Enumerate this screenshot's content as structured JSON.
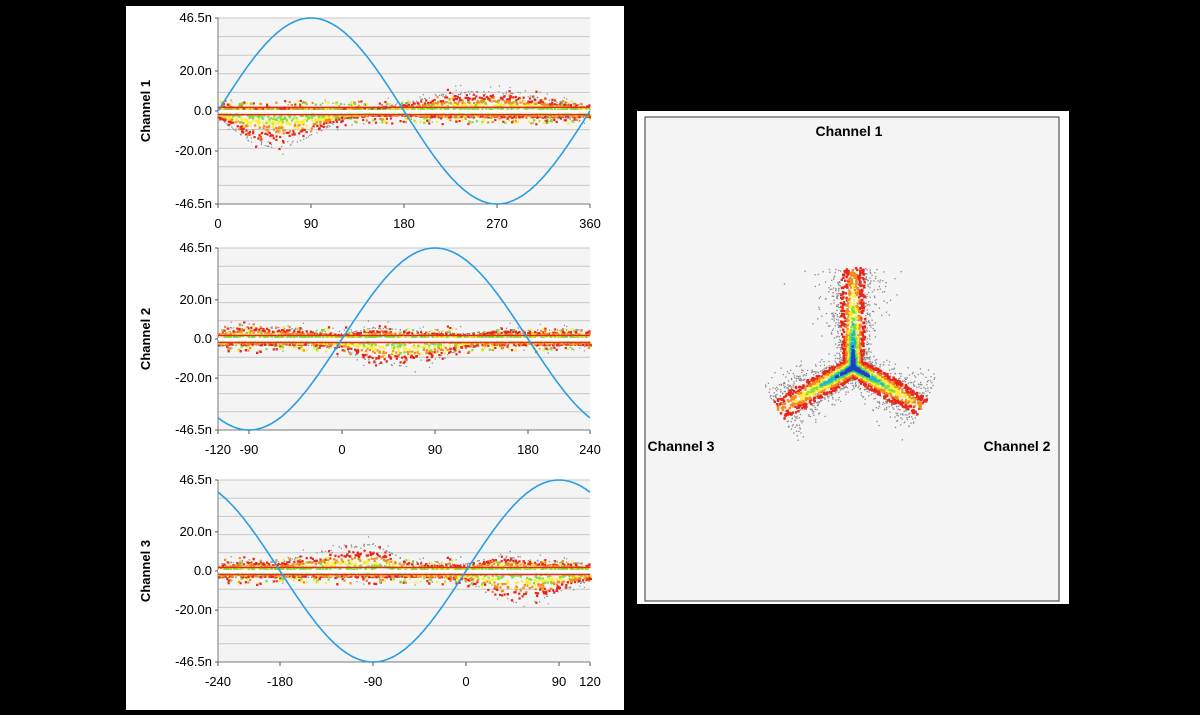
{
  "chart_data": [
    {
      "type": "scatter",
      "ylabel": "Channel 1",
      "ylim": [
        -46.5,
        46.5
      ],
      "ytick_labels": [
        "46.5n",
        "20.0n",
        "0.0",
        "-20.0n",
        "-46.5n"
      ],
      "ytick_values": [
        46.5,
        20,
        0,
        -20,
        -46.5
      ],
      "xlim": [
        0,
        360
      ],
      "xtick_values": [
        0,
        90,
        180,
        270,
        360
      ],
      "xtick_labels": [
        "0",
        "90",
        "180",
        "270",
        "360"
      ],
      "reference_sine": {
        "amplitude": 46.5,
        "phase_deg": 0,
        "color": "#2a9ee0"
      },
      "density_profile": {
        "x": [
          0,
          30,
          60,
          90,
          120,
          150,
          180,
          210,
          240,
          270,
          300,
          330,
          360
        ],
        "upper": [
          3,
          2,
          2,
          2,
          2,
          2,
          4,
          8,
          10,
          10,
          8,
          5,
          3
        ],
        "lower": [
          -3,
          -15,
          -19,
          -12,
          -4,
          -2,
          -2,
          -3,
          -3,
          -3,
          -3,
          -3,
          -3
        ]
      },
      "grid": true,
      "background": "#f4f4f4"
    },
    {
      "type": "scatter",
      "ylabel": "Channel 2",
      "ylim": [
        -46.5,
        46.5
      ],
      "ytick_labels": [
        "46.5n",
        "20.0n",
        "0.0",
        "-20.0n",
        "-46.5n"
      ],
      "ytick_values": [
        46.5,
        20,
        0,
        -20,
        -46.5
      ],
      "xlim": [
        -120,
        240
      ],
      "xtick_values": [
        -120,
        -90,
        0,
        90,
        180,
        240
      ],
      "xtick_labels": [
        "-120",
        "-90",
        "0",
        "90",
        "180",
        "240"
      ],
      "reference_sine": {
        "amplitude": 46.5,
        "phase_deg": 0,
        "color": "#2a9ee0"
      },
      "density_profile": {
        "x": [
          -120,
          -90,
          -60,
          -30,
          0,
          30,
          60,
          90,
          120,
          150,
          180,
          210,
          240
        ],
        "upper": [
          5,
          8,
          6,
          5,
          3,
          6,
          5,
          4,
          3,
          5,
          5,
          5,
          5
        ],
        "lower": [
          -3,
          -3,
          -3,
          -3,
          -5,
          -12,
          -14,
          -10,
          -4,
          -3,
          -3,
          -3,
          -3
        ]
      },
      "grid": true,
      "background": "#f4f4f4"
    },
    {
      "type": "scatter",
      "ylabel": "Channel 3",
      "ylim": [
        -46.5,
        46.5
      ],
      "ytick_labels": [
        "46.5n",
        "20.0n",
        "0.0",
        "-20.0n",
        "-46.5n"
      ],
      "ytick_values": [
        46.5,
        20,
        0,
        -20,
        -46.5
      ],
      "xlim": [
        -240,
        120
      ],
      "xtick_values": [
        -240,
        -180,
        -90,
        0,
        90,
        120
      ],
      "xtick_labels": [
        "-240",
        "-180",
        "-90",
        "0",
        "90",
        "120"
      ],
      "reference_sine": {
        "amplitude": 46.5,
        "phase_deg": 0,
        "color": "#2a9ee0"
      },
      "density_profile": {
        "x": [
          -240,
          -210,
          -180,
          -150,
          -120,
          -90,
          -60,
          -30,
          0,
          30,
          60,
          90,
          120
        ],
        "upper": [
          4,
          6,
          5,
          9,
          12,
          14,
          6,
          4,
          4,
          8,
          6,
          5,
          4
        ],
        "lower": [
          -3,
          -3,
          -3,
          -3,
          -3,
          -3,
          -3,
          -3,
          -5,
          -14,
          -17,
          -10,
          -4
        ],
        "note_points": []
      },
      "grid": true,
      "background": "#f4f4f4"
    },
    {
      "type": "scatter",
      "subtype": "ternary-density",
      "axis_labels": [
        "Channel 1",
        "Channel 2",
        "Channel 3"
      ],
      "arms": [
        {
          "toward": "Channel 1",
          "angle_deg": 90,
          "length": 0.55
        },
        {
          "toward": "Channel 2",
          "angle_deg": -30,
          "length": 0.45
        },
        {
          "toward": "Channel 3",
          "angle_deg": 210,
          "length": 0.48
        }
      ],
      "background": "#f4f4f4"
    }
  ],
  "colors": {
    "sine": "#2a9ee0",
    "density_low": "#8a8a8a",
    "density_mid_red": "#e8261a",
    "density_orange": "#f28c1c",
    "density_yellow": "#ffee33",
    "density_green": "#7fe23a",
    "density_cyan": "#18b9c9",
    "density_blue": "#2040c0"
  }
}
